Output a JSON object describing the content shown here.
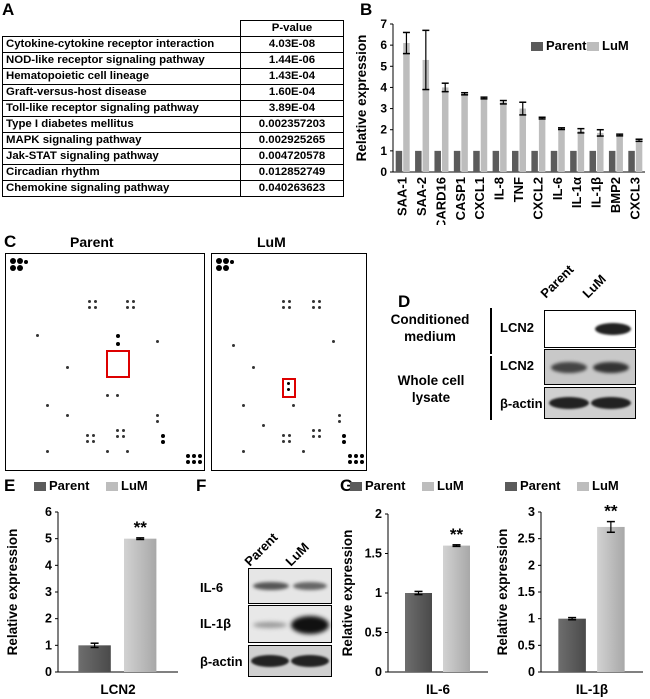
{
  "panels": {
    "A": {
      "label": "A",
      "header": "P-value",
      "rows": [
        {
          "name": "Cytokine-cytokine receptor interaction",
          "p": "4.03E-08"
        },
        {
          "name": "NOD-like receptor signaling pathway",
          "p": "1.44E-06"
        },
        {
          "name": "Hematopoietic cell lineage",
          "p": "1.43E-04"
        },
        {
          "name": "Graft-versus-host disease",
          "p": "1.60E-04"
        },
        {
          "name": "Toll-like receptor signaling pathway",
          "p": "3.89E-04"
        },
        {
          "name": "Type I diabetes mellitus",
          "p": "0.002357203"
        },
        {
          "name": "MAPK signaling pathway",
          "p": "0.002925265"
        },
        {
          "name": "Jak-STAT signaling pathway",
          "p": "0.004720578"
        },
        {
          "name": "Circadian rhythm",
          "p": "0.012852749"
        },
        {
          "name": "Chemokine signaling pathway",
          "p": "0.040263623"
        }
      ]
    },
    "B": {
      "label": "B"
    },
    "C": {
      "label": "C",
      "left_title": "Parent",
      "right_title": "LuM"
    },
    "D": {
      "label": "D",
      "col_labels": [
        "Parent",
        "LuM"
      ],
      "group1": "Conditioned medium",
      "group2": "Whole cell lysate",
      "rows": [
        "LCN2",
        "LCN2",
        "β-actin"
      ]
    },
    "E": {
      "label": "E"
    },
    "F": {
      "label": "F",
      "col_labels": [
        "Parent",
        "LuM"
      ],
      "rows": [
        "IL-6",
        "IL-1β",
        "β-actin"
      ]
    },
    "G": {
      "label": "G"
    }
  },
  "colors": {
    "parent": "#5b5b5b",
    "lum": "#bdbdbd"
  },
  "chart_data": [
    {
      "id": "B",
      "type": "bar",
      "ylabel": "Relative expression",
      "ylim": [
        0,
        7
      ],
      "yticks": [
        0,
        1,
        2,
        3,
        4,
        5,
        6,
        7
      ],
      "legend": "top-right",
      "categories": [
        "SAA-1",
        "SAA-2",
        "CARD16",
        "CASP1",
        "CXCL1",
        "IL-8",
        "TNF",
        "CXCL2",
        "IL-6",
        "IL-1α",
        "IL-1β",
        "BMP2",
        "CXCL3"
      ],
      "series": [
        {
          "name": "Parent",
          "values": [
            1,
            1,
            1,
            1,
            1,
            1,
            1,
            1,
            1,
            1,
            1,
            1,
            1
          ]
        },
        {
          "name": "LuM",
          "values": [
            6.1,
            5.3,
            4.0,
            3.7,
            3.5,
            3.3,
            3.0,
            2.55,
            2.05,
            1.95,
            1.85,
            1.75,
            1.5
          ],
          "errors": [
            0.5,
            1.4,
            0.2,
            0.05,
            0.04,
            0.08,
            0.3,
            0.04,
            0.04,
            0.1,
            0.15,
            0.04,
            0.05
          ]
        }
      ]
    },
    {
      "id": "E",
      "type": "bar",
      "xlabel": "LCN2",
      "ylabel": "Relative expression",
      "ylim": [
        0,
        6
      ],
      "yticks": [
        0,
        1,
        2,
        3,
        4,
        5,
        6
      ],
      "annotation": "**",
      "series": [
        {
          "name": "Parent",
          "values": [
            1.0
          ],
          "errors": [
            0.08
          ]
        },
        {
          "name": "LuM",
          "values": [
            5.0
          ],
          "errors": [
            0.03
          ]
        }
      ]
    },
    {
      "id": "G1",
      "type": "bar",
      "xlabel": "IL-6",
      "ylabel": "Relative expression",
      "ylim": [
        0,
        2
      ],
      "yticks": [
        0,
        0.5,
        1,
        1.5,
        2
      ],
      "annotation": "**",
      "series": [
        {
          "name": "Parent",
          "values": [
            1.0
          ],
          "errors": [
            0.02
          ]
        },
        {
          "name": "LuM",
          "values": [
            1.6
          ],
          "errors": [
            0.01
          ]
        }
      ]
    },
    {
      "id": "G2",
      "type": "bar",
      "xlabel": "IL-1β",
      "ylabel": "Relative expression",
      "ylim": [
        0,
        3
      ],
      "yticks": [
        0,
        0.5,
        1,
        1.5,
        2,
        2.5,
        3
      ],
      "annotation": "**",
      "series": [
        {
          "name": "Parent",
          "values": [
            1.0
          ],
          "errors": [
            0.02
          ]
        },
        {
          "name": "LuM",
          "values": [
            2.72
          ],
          "errors": [
            0.1
          ]
        }
      ]
    }
  ]
}
